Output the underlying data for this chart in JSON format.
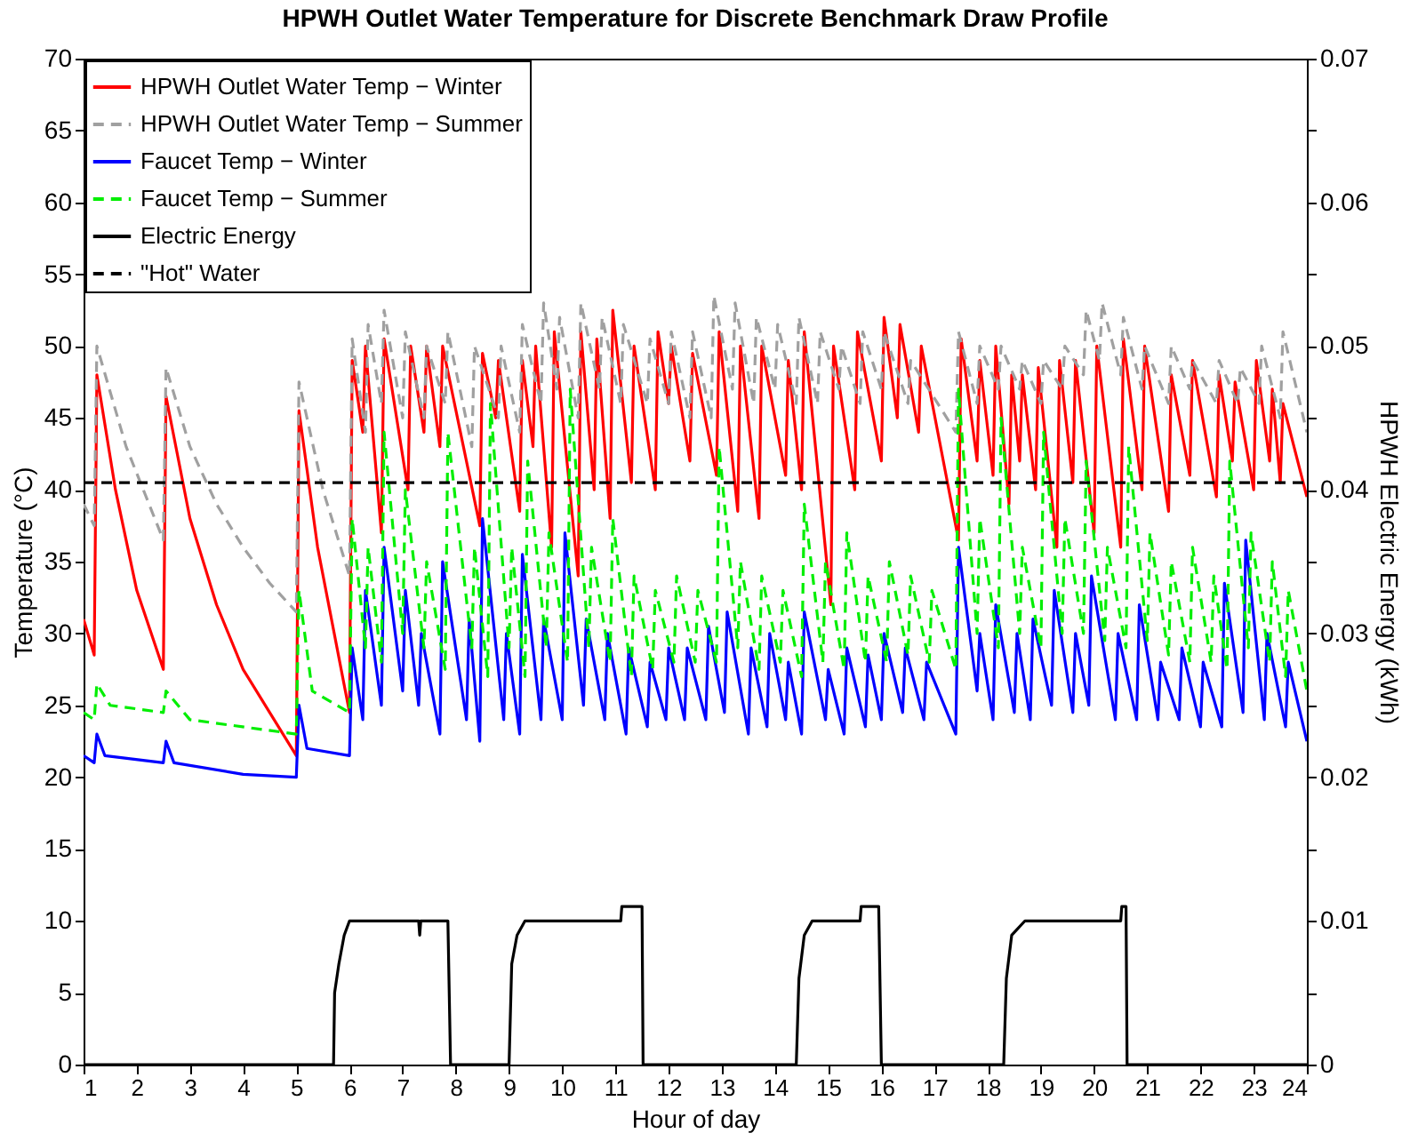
{
  "chart_data": {
    "type": "line",
    "title": "HPWH Outlet Water Temperature for Discrete Benchmark Draw Profile",
    "xlabel": "Hour of day",
    "ylabel": "Temperature (°C)",
    "y2label": "HPWH Electric Energy (kWh)",
    "xlim": [
      1,
      24
    ],
    "xticks": [
      1,
      2,
      3,
      4,
      5,
      6,
      7,
      8,
      9,
      10,
      11,
      12,
      13,
      14,
      15,
      16,
      17,
      18,
      19,
      20,
      21,
      22,
      23,
      24
    ],
    "ylim": [
      0,
      70
    ],
    "yticks": [
      0,
      5,
      10,
      15,
      20,
      25,
      30,
      35,
      40,
      45,
      50,
      55,
      60,
      65,
      70
    ],
    "y2lim": [
      0,
      0.07
    ],
    "y2ticks": [
      0,
      {
        "value": 0.005,
        "label": null
      },
      0.01,
      {
        "value": 0.015,
        "label": null
      },
      0.02,
      {
        "value": 0.025,
        "label": null
      },
      0.03,
      {
        "value": 0.035,
        "label": null
      },
      0.04,
      {
        "value": 0.045,
        "label": null
      },
      0.05,
      {
        "value": 0.055,
        "label": null
      },
      0.06,
      {
        "value": 0.065,
        "label": null
      },
      0.07
    ],
    "legend": "top left",
    "grid": false,
    "marker": "none",
    "series": [
      {
        "name": "HPWH Outlet Water Temp − Winter",
        "color": "#ff0000",
        "line_style": "solid",
        "x": [
          1,
          1.2,
          1.25,
          1.6,
          2,
          2.5,
          2.55,
          3,
          3.5,
          4,
          4.5,
          5,
          5.05,
          5.4,
          6,
          6.05,
          6.25,
          6.3,
          6.6,
          6.65,
          7.1,
          7.15,
          7.4,
          7.45,
          7.7,
          7.75,
          8.45,
          8.5,
          8.75,
          8.8,
          9.2,
          9.25,
          9.45,
          9.5,
          9.8,
          9.85,
          10.3,
          10.35,
          10.6,
          10.65,
          10.9,
          10.95,
          11.3,
          11.35,
          11.75,
          11.8,
          12,
          12.05,
          12.4,
          12.45,
          12.9,
          12.95,
          13.3,
          13.35,
          13.7,
          13.75,
          14.2,
          14.25,
          14.5,
          14.55,
          15.05,
          15.1,
          15.5,
          15.55,
          16,
          16.05,
          16.3,
          16.35,
          16.7,
          16.75,
          17.45,
          17.5,
          17.8,
          17.85,
          18.1,
          18.15,
          18.4,
          18.45,
          18.6,
          18.65,
          18.9,
          18.95,
          19.3,
          19.35,
          19.6,
          19.65,
          20,
          20.05,
          20.5,
          20.55,
          20.9,
          20.95,
          21.4,
          21.45,
          21.8,
          21.85,
          22.3,
          22.35,
          22.6,
          22.65,
          23,
          23.05,
          23.3,
          23.35,
          23.5,
          23.55,
          24
        ],
        "values": [
          31,
          28.5,
          48,
          40,
          33,
          27.5,
          46.5,
          38,
          32,
          27.5,
          24.5,
          21.5,
          45.5,
          36,
          24.5,
          49,
          44,
          50,
          37,
          50.5,
          40,
          50,
          44,
          50,
          43,
          50,
          37.5,
          49.5,
          45,
          49,
          38.5,
          49,
          43,
          50,
          36,
          51,
          34,
          51,
          40,
          50.5,
          38,
          52.5,
          40.5,
          50,
          40,
          51,
          46,
          50,
          42,
          49.5,
          41,
          51,
          38.5,
          50,
          38,
          50,
          41,
          49,
          40,
          51,
          32,
          50,
          40,
          51,
          42,
          52,
          45,
          51.5,
          44,
          50,
          36.5,
          50.5,
          42,
          49,
          41,
          50,
          39,
          48,
          42,
          48,
          40,
          48.5,
          36,
          49,
          40.5,
          49,
          37,
          50,
          36,
          50.5,
          40,
          50,
          38.5,
          48,
          41,
          49,
          39.5,
          48,
          42,
          47.5,
          40,
          49,
          42,
          47,
          40.5,
          46,
          39.5
        ]
      },
      {
        "name": "HPWH Outlet Water Temp − Summer",
        "color": "#a0a0a0",
        "line_style": "dashed",
        "x": [
          1,
          1.2,
          1.25,
          1.8,
          2.5,
          2.55,
          3,
          3.5,
          4,
          4.5,
          5,
          5.05,
          5.5,
          6,
          6.05,
          6.3,
          6.35,
          6.6,
          6.65,
          7,
          7.05,
          7.4,
          7.45,
          7.8,
          7.85,
          8.3,
          8.35,
          8.8,
          8.85,
          9.2,
          9.25,
          9.6,
          9.65,
          9.9,
          9.95,
          10.3,
          10.35,
          10.7,
          10.75,
          11.1,
          11.15,
          11.6,
          11.65,
          12,
          12.05,
          12.4,
          12.45,
          12.8,
          12.85,
          13.2,
          13.25,
          13.6,
          13.65,
          14,
          14.05,
          14.4,
          14.45,
          14.8,
          14.85,
          15.2,
          15.25,
          15.6,
          15.65,
          16,
          16.05,
          16.5,
          16.55,
          17.4,
          17.45,
          17.8,
          17.85,
          18.2,
          18.25,
          18.6,
          18.65,
          19,
          19.05,
          19.4,
          19.45,
          19.8,
          19.85,
          20.1,
          20.15,
          20.5,
          20.55,
          20.9,
          20.95,
          21.4,
          21.45,
          21.8,
          21.85,
          22.3,
          22.35,
          22.7,
          22.75,
          23.1,
          23.15,
          23.5,
          23.55,
          24
        ],
        "values": [
          39,
          37.5,
          50,
          43,
          36.5,
          48.5,
          43,
          39,
          36,
          33.5,
          31.5,
          47.5,
          40,
          34,
          50.5,
          44,
          51.5,
          46,
          52.5,
          45,
          51,
          45,
          50,
          46,
          51,
          43,
          50,
          45,
          50,
          44,
          51.5,
          46,
          53,
          47,
          52,
          45,
          53,
          47,
          52,
          46,
          51.5,
          46,
          50.5,
          46,
          51,
          45,
          51,
          45,
          53.5,
          47,
          53,
          46,
          52,
          47,
          51.5,
          46,
          52,
          46,
          51,
          47,
          50,
          46,
          51,
          47,
          51,
          46,
          49,
          44,
          51,
          46,
          50,
          47,
          50,
          47,
          49,
          46,
          49,
          47,
          50,
          48,
          52.5,
          49,
          53,
          48,
          52,
          47,
          50,
          46,
          50,
          47,
          49,
          46,
          49,
          46,
          48.5,
          46,
          50,
          45,
          51,
          44
        ]
      },
      {
        "name": "Faucet Temp − Winter",
        "color": "#0000ff",
        "line_style": "solid",
        "x": [
          1,
          1.2,
          1.25,
          1.4,
          2.5,
          2.55,
          2.7,
          4,
          5,
          5.05,
          5.2,
          6,
          6.05,
          6.25,
          6.3,
          6.6,
          6.65,
          7,
          7.05,
          7.3,
          7.35,
          7.7,
          7.75,
          8.2,
          8.25,
          8.45,
          8.5,
          8.9,
          8.95,
          9.2,
          9.25,
          9.6,
          9.65,
          10,
          10.05,
          10.4,
          10.45,
          10.8,
          10.85,
          11.2,
          11.25,
          11.6,
          11.65,
          11.95,
          12,
          12.3,
          12.35,
          12.7,
          12.75,
          13.05,
          13.1,
          13.5,
          13.55,
          13.85,
          13.9,
          14.2,
          14.25,
          14.5,
          14.55,
          14.95,
          15,
          15.3,
          15.35,
          15.7,
          15.75,
          16,
          16.05,
          16.4,
          16.45,
          16.8,
          16.85,
          17.4,
          17.45,
          17.8,
          17.85,
          18.1,
          18.15,
          18.5,
          18.55,
          18.8,
          18.85,
          19.2,
          19.25,
          19.6,
          19.65,
          19.9,
          19.95,
          20.4,
          20.45,
          20.8,
          20.85,
          21.2,
          21.25,
          21.6,
          21.65,
          22,
          22.05,
          22.4,
          22.45,
          22.8,
          22.85,
          23.2,
          23.25,
          23.6,
          23.65,
          24
        ],
        "values": [
          21.5,
          21,
          23,
          21.5,
          21,
          22.5,
          21,
          20.2,
          20,
          25,
          22,
          21.5,
          29,
          24,
          33,
          25,
          36,
          26,
          33,
          25,
          30,
          23,
          35,
          24,
          31,
          22.5,
          38,
          24,
          30,
          23,
          35.5,
          24,
          31,
          24,
          37,
          25,
          31,
          24,
          30,
          23,
          29,
          23.5,
          28,
          24,
          29,
          24,
          29,
          24,
          30.5,
          24.5,
          31.5,
          23,
          29,
          23.5,
          30,
          24,
          28,
          23,
          31.5,
          24,
          27.5,
          23,
          29,
          23.5,
          28.5,
          24,
          30,
          24.5,
          29,
          24,
          28,
          23,
          36,
          26,
          30,
          24,
          32,
          24.5,
          30,
          24,
          31,
          25,
          33,
          24.5,
          30,
          25,
          34,
          24,
          30,
          24,
          32,
          24,
          28,
          24,
          29,
          23.5,
          28,
          23.5,
          33.5,
          24.5,
          36.5,
          24,
          30,
          23.5,
          28,
          22.5
        ]
      },
      {
        "name": "Faucet Temp − Summer",
        "color": "#00ee00",
        "line_style": "dashed",
        "x": [
          1,
          1.2,
          1.25,
          1.5,
          2.5,
          2.55,
          3,
          5,
          5.05,
          5.3,
          6,
          6.05,
          6.3,
          6.35,
          6.6,
          6.65,
          7,
          7.05,
          7.4,
          7.45,
          7.8,
          7.85,
          8.3,
          8.35,
          8.6,
          8.65,
          9,
          9.05,
          9.3,
          9.35,
          9.7,
          9.75,
          10.1,
          10.15,
          10.5,
          10.55,
          10.9,
          10.95,
          11.3,
          11.35,
          11.7,
          11.75,
          12.1,
          12.15,
          12.5,
          12.55,
          12.9,
          12.95,
          13.3,
          13.35,
          13.7,
          13.75,
          14.1,
          14.15,
          14.5,
          14.55,
          14.9,
          14.95,
          15.3,
          15.35,
          15.7,
          15.75,
          16.1,
          16.15,
          16.5,
          16.55,
          16.9,
          16.95,
          17.4,
          17.45,
          17.8,
          17.85,
          18.2,
          18.25,
          18.6,
          18.65,
          19,
          19.05,
          19.4,
          19.45,
          19.8,
          19.85,
          20.2,
          20.25,
          20.6,
          20.65,
          21,
          21.05,
          21.4,
          21.45,
          21.8,
          21.85,
          22.2,
          22.25,
          22.5,
          22.55,
          22.9,
          22.95,
          23.3,
          23.35,
          23.6,
          23.65,
          24
        ],
        "values": [
          24.5,
          24,
          26.5,
          25,
          24.5,
          26,
          24,
          23,
          33,
          26,
          24.5,
          38,
          29,
          36,
          28,
          44,
          30,
          40,
          29,
          35,
          27.5,
          44,
          29,
          36,
          27,
          46,
          29,
          36,
          27,
          42,
          29,
          37,
          28,
          47,
          29,
          36,
          28,
          38,
          27,
          34,
          27.5,
          33,
          28,
          34,
          28,
          33,
          28,
          43,
          29,
          35,
          27.5,
          34,
          28,
          33,
          27,
          39,
          28,
          35,
          27.5,
          37,
          28,
          34,
          28,
          35,
          28.5,
          34,
          28,
          33,
          27.5,
          47,
          30,
          38,
          29,
          45,
          30,
          36,
          29,
          44,
          30,
          38,
          30,
          42,
          29.5,
          36,
          29,
          43,
          29.5,
          37,
          28.5,
          35,
          28,
          36,
          28,
          34,
          27.5,
          42,
          29,
          37,
          28,
          35,
          27,
          33,
          26
        ]
      },
      {
        "name": "Electric Energy",
        "color": "#000000",
        "line_style": "solid",
        "axis": "y2",
        "x": [
          1,
          5.7,
          5.72,
          5.8,
          5.9,
          6,
          7.3,
          7.32,
          7.34,
          7.85,
          7.9,
          9,
          9.05,
          9.15,
          9.3,
          11.1,
          11.12,
          11.5,
          11.52,
          14.4,
          14.45,
          14.55,
          14.7,
          15.6,
          15.62,
          15.95,
          16,
          18.3,
          18.35,
          18.45,
          18.7,
          20.5,
          20.52,
          20.6,
          20.62,
          24
        ],
        "values": [
          0,
          0,
          0.005,
          0.007,
          0.009,
          0.01,
          0.01,
          0.009,
          0.01,
          0.01,
          0,
          0,
          0.007,
          0.009,
          0.01,
          0.01,
          0.011,
          0.011,
          0,
          0,
          0.006,
          0.009,
          0.01,
          0.01,
          0.011,
          0.011,
          0,
          0,
          0.006,
          0.009,
          0.01,
          0.01,
          0.011,
          0.011,
          0,
          0
        ]
      },
      {
        "name": "\"Hot\" Water",
        "color": "#000000",
        "line_style": "dashed",
        "x": [
          1,
          24
        ],
        "values": [
          40.5,
          40.5
        ]
      }
    ]
  }
}
